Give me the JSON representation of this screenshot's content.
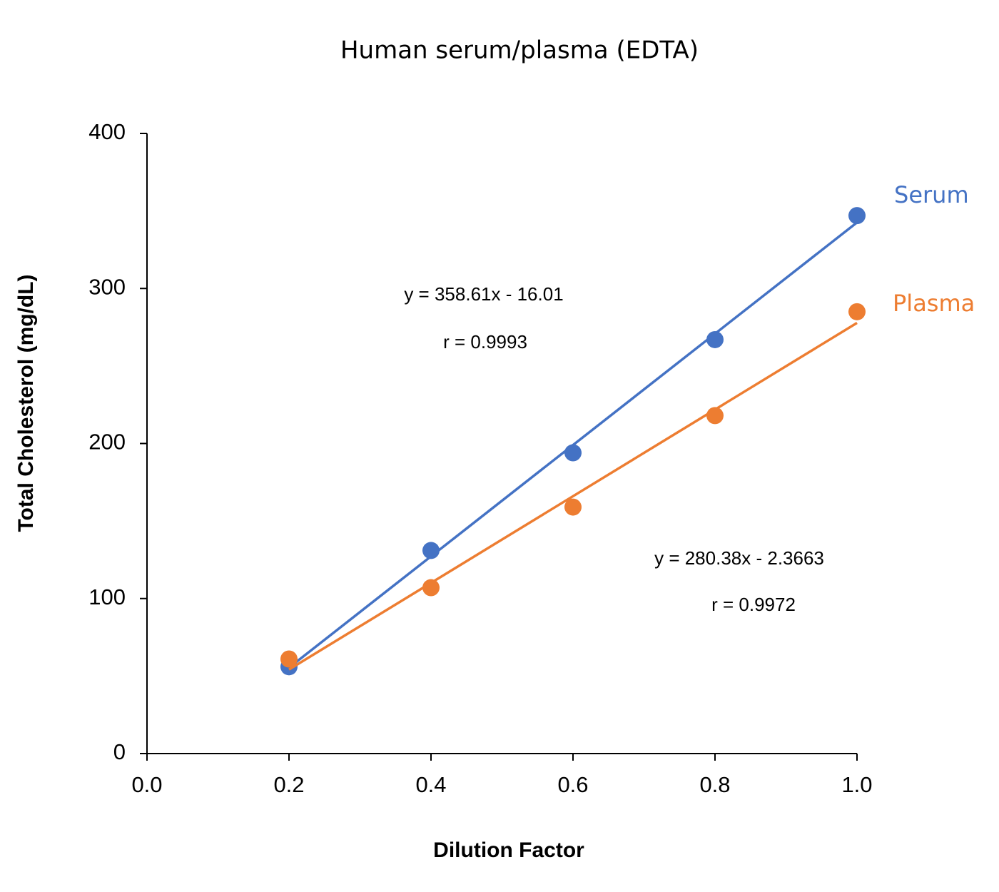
{
  "chart_data": {
    "type": "scatter",
    "title": "Human serum/plasma (EDTA)",
    "x_label": "Dilution Factor",
    "y_label": "Total Cholesterol (mg/dL)",
    "x": [
      0.2,
      0.4,
      0.6,
      0.8,
      1.0
    ],
    "series": [
      {
        "name": "Serum",
        "color": "#4472c4",
        "values": [
          56,
          131,
          194,
          267,
          347
        ],
        "equation": "y = 358.61x - 16.01",
        "r_label": "r = 0.9993"
      },
      {
        "name": "Plasma",
        "color": "#ed7d31",
        "values": [
          61,
          107,
          159,
          218,
          285
        ],
        "equation": "y = 280.38x - 2.3663",
        "r_label": "r = 0.9972"
      }
    ],
    "xlim": [
      0,
      1
    ],
    "ylim": [
      0,
      400
    ],
    "xticks": [
      {
        "value": 0,
        "label": "0.0"
      },
      {
        "value": 0.2,
        "label": "0.2"
      },
      {
        "value": 0.4,
        "label": "0.4"
      },
      {
        "value": 0.6,
        "label": "0.6"
      },
      {
        "value": 0.8,
        "label": "0.8"
      },
      {
        "value": 1,
        "label": "1.0"
      }
    ],
    "yticks": [
      0,
      100,
      200,
      300,
      400
    ],
    "trendline": "linear",
    "grid": false
  }
}
